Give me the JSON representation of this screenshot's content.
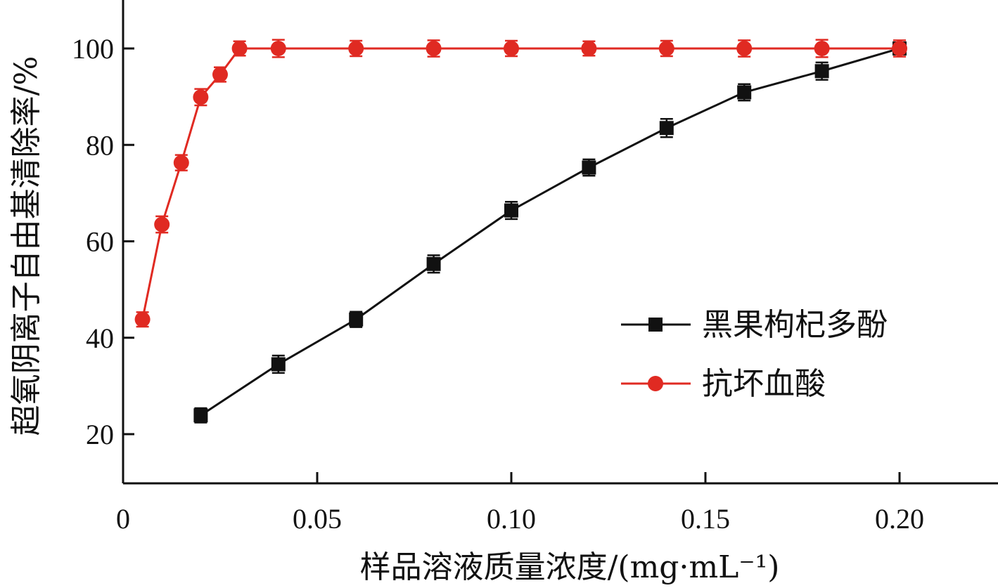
{
  "chart_data": {
    "type": "line",
    "xlabel": "样品溶液质量浓度/(mg·mL⁻¹)",
    "ylabel": "超氧阴离子自由基清除率/%",
    "xlim": [
      0,
      0.225
    ],
    "ylim": [
      10,
      110
    ],
    "x_ticks": [
      0,
      0.05,
      0.1,
      0.15,
      0.2
    ],
    "x_tick_labels": [
      "0",
      "0.05",
      "0.10",
      "0.15",
      "0.20"
    ],
    "y_ticks": [
      20,
      40,
      60,
      80,
      100
    ],
    "y_tick_labels": [
      "20",
      "40",
      "60",
      "80",
      "100"
    ],
    "grid": false,
    "legend_position": "right",
    "series": [
      {
        "name": "黑果枸杞多酚",
        "color": "#111111",
        "marker": "square",
        "x": [
          0.02,
          0.04,
          0.06,
          0.08,
          0.1,
          0.12,
          0.14,
          0.16,
          0.18,
          0.2
        ],
        "values": [
          23.9,
          34.5,
          43.8,
          55.3,
          66.4,
          75.3,
          83.5,
          90.9,
          95.3,
          100.0
        ],
        "errors": [
          1.5,
          1.8,
          1.6,
          1.8,
          1.8,
          1.7,
          1.9,
          1.7,
          1.8,
          1.0
        ]
      },
      {
        "name": "抗坏血酸",
        "color": "#e02a22",
        "marker": "circle",
        "x": [
          0.005,
          0.01,
          0.015,
          0.02,
          0.025,
          0.03,
          0.04,
          0.06,
          0.08,
          0.1,
          0.12,
          0.14,
          0.16,
          0.18,
          0.2
        ],
        "values": [
          43.8,
          63.5,
          76.3,
          89.9,
          94.6,
          100.0,
          100.0,
          100.0,
          100.0,
          100.0,
          100.0,
          100.0,
          100.0,
          100.0,
          100.0
        ],
        "errors": [
          1.5,
          1.7,
          1.6,
          1.7,
          1.5,
          1.5,
          1.8,
          1.6,
          1.7,
          1.6,
          1.5,
          1.6,
          1.7,
          1.8,
          1.7
        ]
      }
    ]
  }
}
